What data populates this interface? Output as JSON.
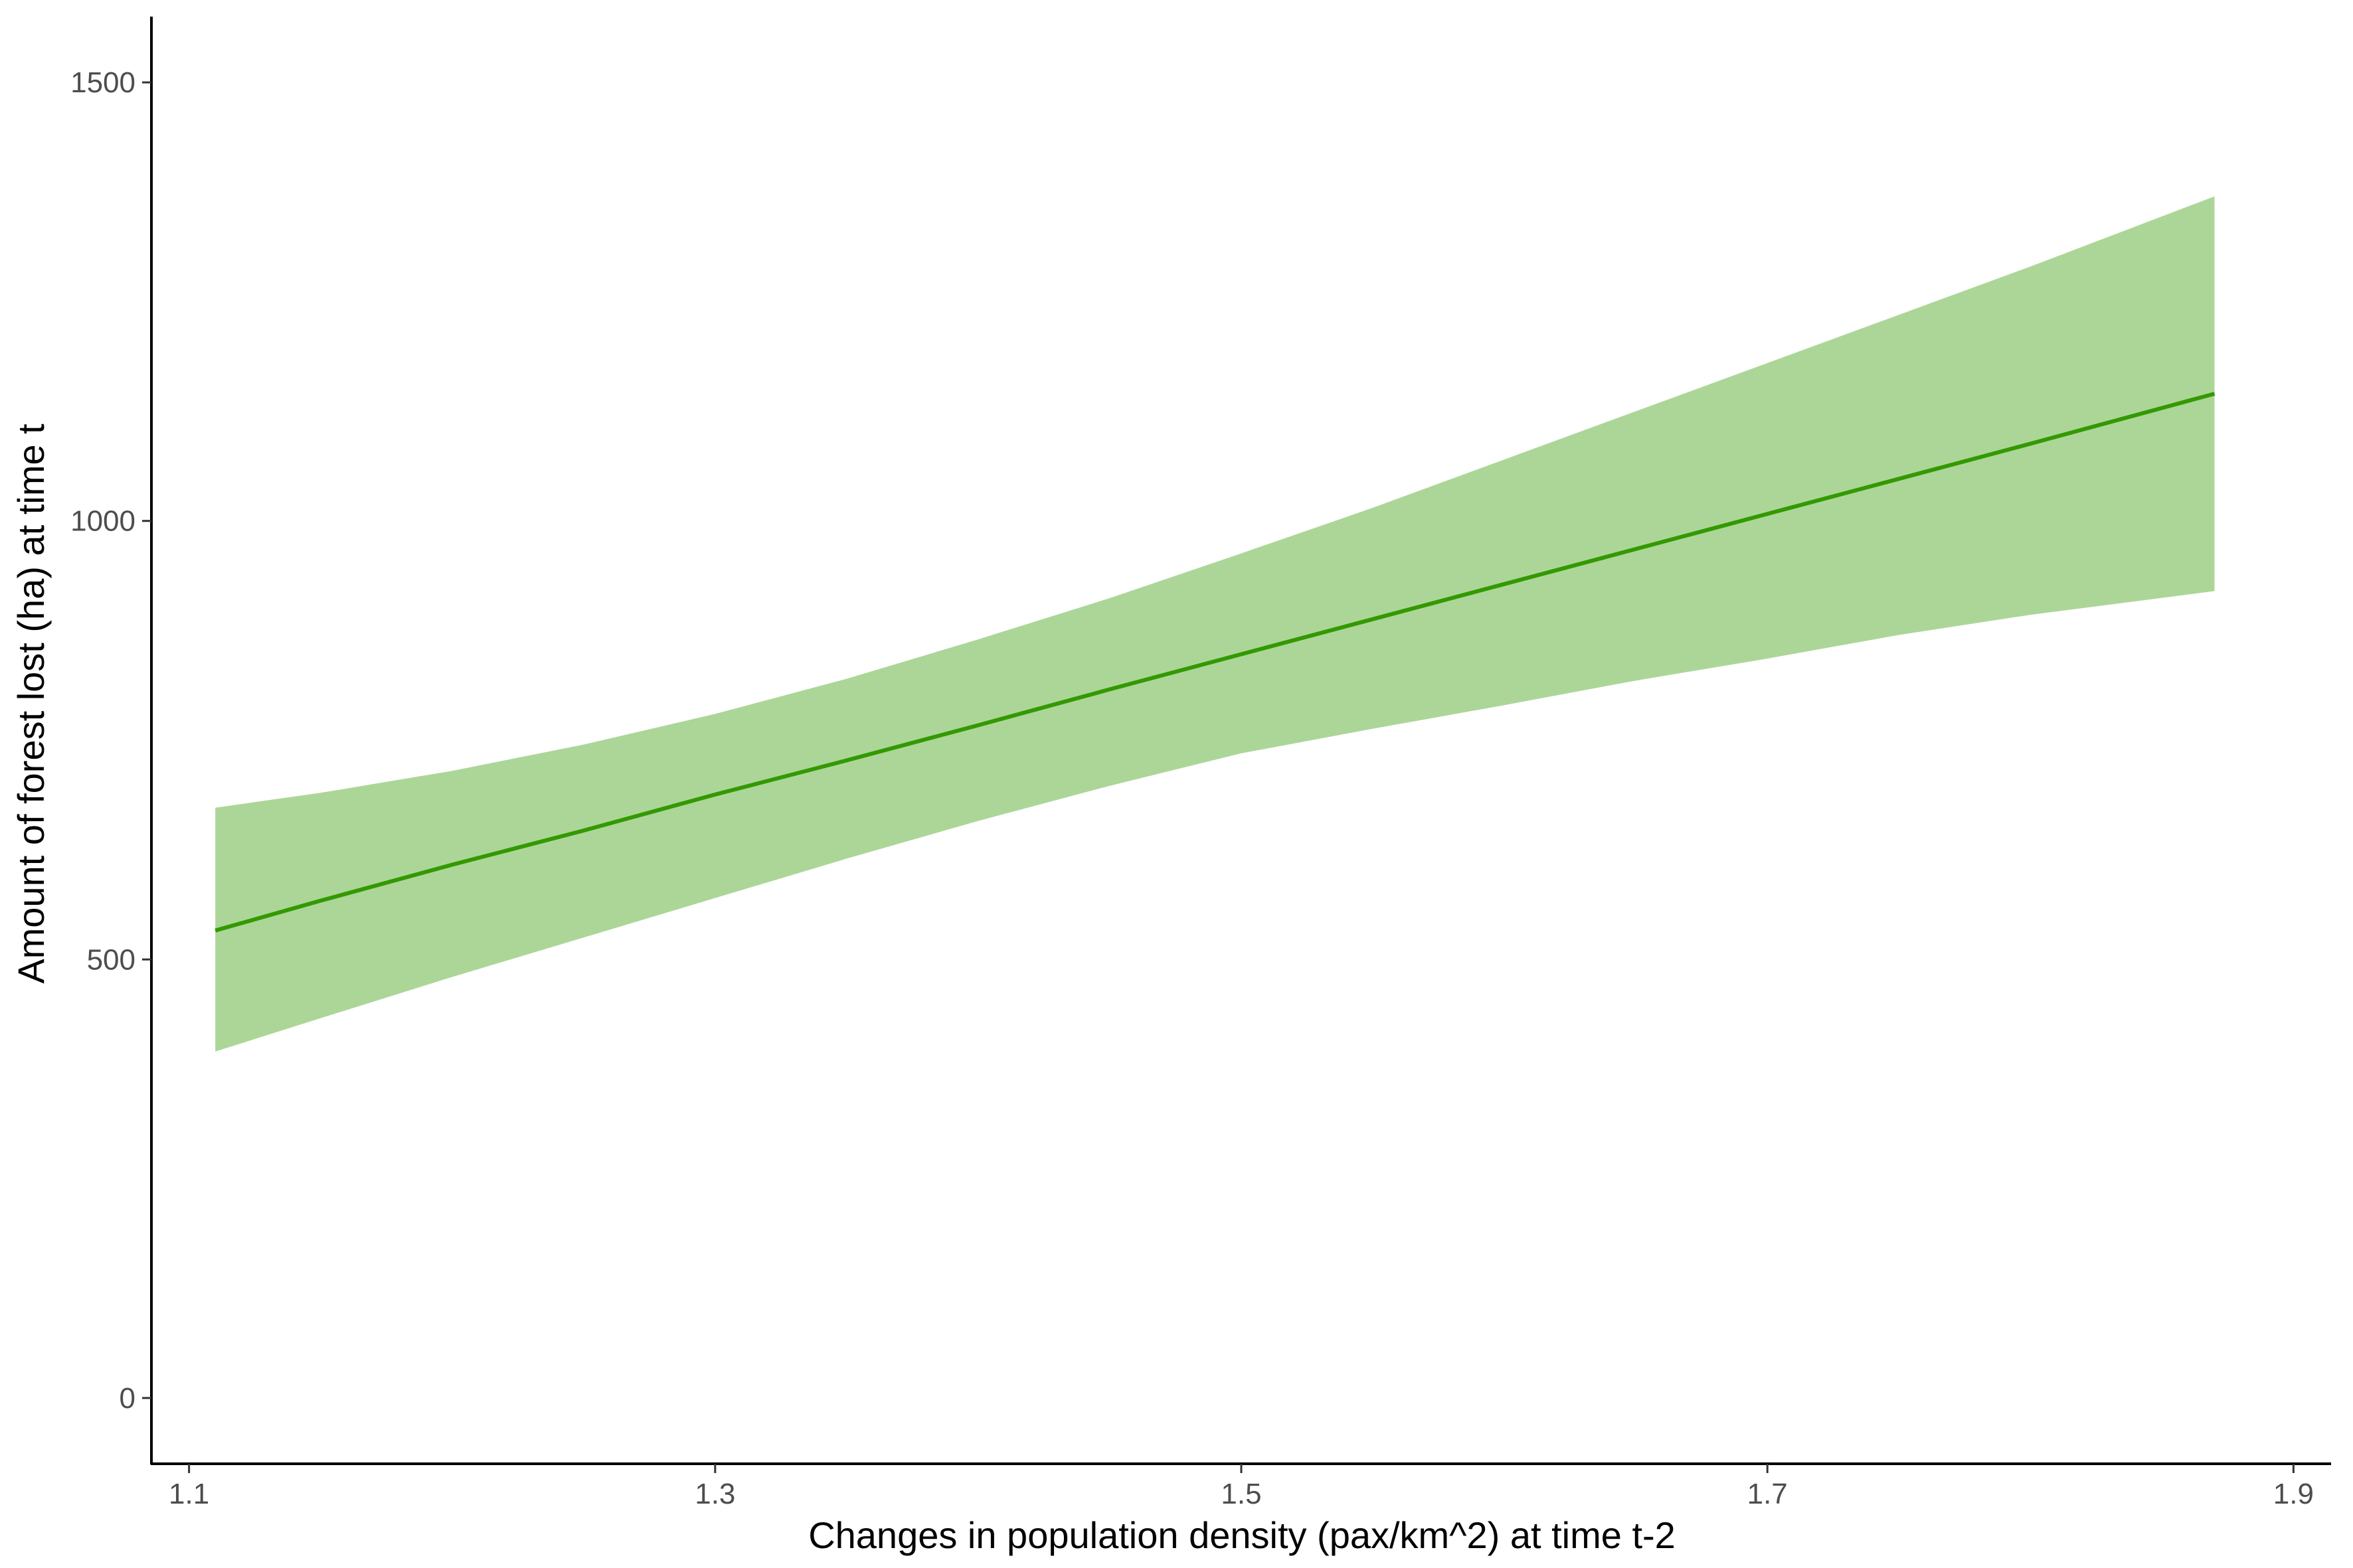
{
  "chart_data": {
    "type": "line",
    "xlabel": "Changes in population density (pax/km^2) at time t-2",
    "ylabel": "Amount of forest lost (ha) at time t",
    "xlim": [
      1.0857,
      1.9143
    ],
    "ylim": [
      -75,
      1575
    ],
    "x_ticks": [
      1.1,
      1.3,
      1.5,
      1.7,
      1.9
    ],
    "x_tick_labels": [
      "1.1",
      "1.3",
      "1.5",
      "1.7",
      "1.9"
    ],
    "y_ticks": [
      0,
      500,
      1000,
      1500
    ],
    "y_tick_labels": [
      "0",
      "500",
      "1000",
      "1500"
    ],
    "grid": false,
    "legend": "none",
    "colors": {
      "line": "#339900",
      "band": "#acd698",
      "axis": "#000000"
    },
    "series": [
      {
        "x": [
          1.11,
          1.15,
          1.2,
          1.25,
          1.3,
          1.35,
          1.4,
          1.45,
          1.5,
          1.55,
          1.6,
          1.65,
          1.7,
          1.75,
          1.8,
          1.87
        ],
        "y": [
          533,
          567,
          608,
          647,
          688,
          727,
          767,
          808,
          848,
          888,
          928,
          968,
          1008,
          1048,
          1088,
          1145
        ],
        "lower": [
          395,
          433,
          480,
          525,
          570,
          615,
          658,
          698,
          735,
          763,
          790,
          818,
          843,
          870,
          893,
          920
        ],
        "upper": [
          673,
          690,
          715,
          745,
          780,
          820,
          865,
          912,
          963,
          1015,
          1070,
          1125,
          1180,
          1235,
          1290,
          1370
        ]
      }
    ]
  }
}
